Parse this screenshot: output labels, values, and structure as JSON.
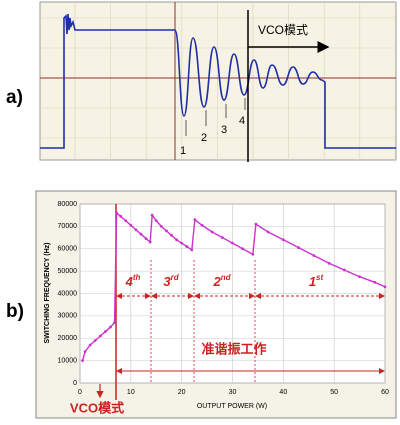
{
  "panel_a": {
    "label": "a)",
    "mode_label": "VCO模式",
    "markers": [
      "1",
      "2",
      "3",
      "4"
    ]
  },
  "chart_data": {
    "type": "line",
    "panel_label": "b)",
    "xlabel": "OUTPUT POWER (W)",
    "ylabel": "SWITCHING FREQUENCY (Hz)",
    "x": [
      0.5,
      1,
      2,
      3,
      4,
      5,
      6,
      6.8,
      7.2,
      8,
      9,
      10,
      11,
      12,
      13,
      13.8,
      14.2,
      15,
      16,
      17,
      18,
      19,
      20,
      21,
      22,
      22.6,
      24,
      26,
      28,
      30,
      32,
      34,
      34.6,
      37,
      40,
      43,
      46,
      49,
      52,
      55,
      58,
      60
    ],
    "values": [
      10000,
      14000,
      17000,
      19000,
      21000,
      23000,
      25000,
      27000,
      76000,
      74500,
      72500,
      70500,
      68500,
      66500,
      64500,
      63000,
      75000,
      72500,
      70000,
      68000,
      66000,
      64000,
      62500,
      61000,
      59500,
      73000,
      70500,
      67500,
      65000,
      62500,
      60000,
      57500,
      71000,
      67500,
      64000,
      60500,
      57000,
      53500,
      50500,
      47500,
      45000,
      43000
    ],
    "color": "#cc33cc",
    "xlim": [
      0,
      60
    ],
    "xticks": [
      0,
      10,
      20,
      30,
      40,
      50,
      60
    ],
    "ylim": [
      0,
      80000
    ],
    "yticks": [
      0,
      10000,
      20000,
      30000,
      40000,
      50000,
      60000,
      70000,
      80000
    ],
    "grid": true,
    "annotations": [
      {
        "main": "4",
        "sup": "th"
      },
      {
        "main": "3",
        "sup": "rd"
      },
      {
        "main": "2",
        "sup": "nd"
      },
      {
        "main": "1",
        "sup": "st"
      }
    ],
    "region_label": "准谐振工作",
    "mode_label": "VCO模式"
  }
}
